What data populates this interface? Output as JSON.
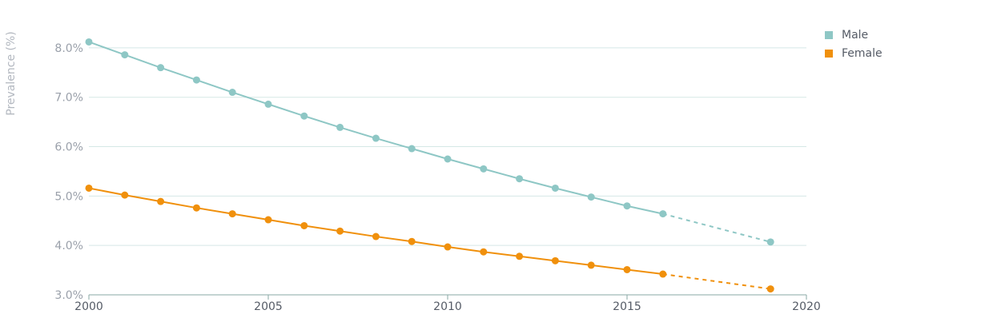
{
  "chart_data": {
    "type": "line",
    "ylabel": "Prevalence (%)",
    "xlabel": "",
    "xlim": [
      2000,
      2020
    ],
    "ylim": [
      3.0,
      8.5
    ],
    "x_ticks": [
      "2000",
      "2005",
      "2010",
      "2015",
      "2020"
    ],
    "y_ticks": [
      "3.0%",
      "4.0%",
      "5.0%",
      "6.0%",
      "7.0%",
      "8.0%"
    ],
    "grid": "horizontal",
    "legend_position": "top-right",
    "series": [
      {
        "name": "Male",
        "color": "#8ec7c5",
        "x": [
          2000,
          2001,
          2002,
          2003,
          2004,
          2005,
          2006,
          2007,
          2008,
          2009,
          2010,
          2011,
          2012,
          2013,
          2014,
          2015,
          2016
        ],
        "y": [
          8.12,
          7.86,
          7.6,
          7.35,
          7.1,
          6.86,
          6.62,
          6.39,
          6.17,
          5.96,
          5.75,
          5.55,
          5.35,
          5.16,
          4.98,
          4.8,
          4.64
        ],
        "projection": {
          "x": [
            2016,
            2019
          ],
          "y": [
            4.64,
            4.07
          ]
        }
      },
      {
        "name": "Female",
        "color": "#f0900c",
        "x": [
          2000,
          2001,
          2002,
          2003,
          2004,
          2005,
          2006,
          2007,
          2008,
          2009,
          2010,
          2011,
          2012,
          2013,
          2014,
          2015,
          2016
        ],
        "y": [
          5.16,
          5.02,
          4.89,
          4.76,
          4.64,
          4.52,
          4.4,
          4.29,
          4.18,
          4.08,
          3.97,
          3.87,
          3.78,
          3.69,
          3.6,
          3.51,
          3.42
        ],
        "projection": {
          "x": [
            2016,
            2019
          ],
          "y": [
            3.42,
            3.12
          ]
        }
      }
    ]
  },
  "legend": {
    "items": [
      {
        "label": "Male",
        "color": "#8ec7c5"
      },
      {
        "label": "Female",
        "color": "#f0900c"
      }
    ]
  }
}
